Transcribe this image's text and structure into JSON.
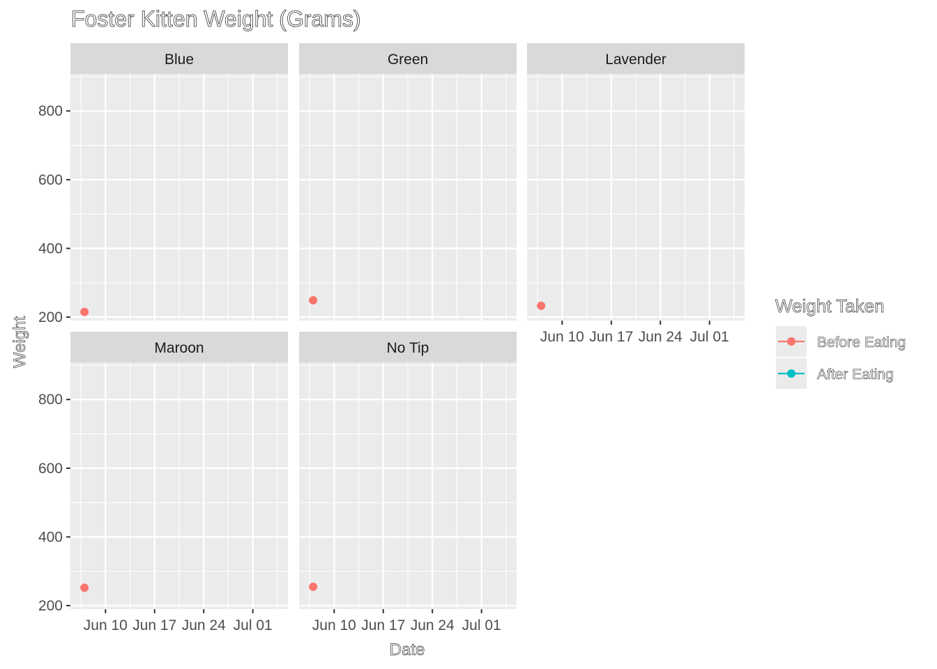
{
  "chart_data": {
    "type": "scatter",
    "title": "Foster Kitten Weight (Grams)",
    "xlabel": "Date",
    "ylabel": "Weight",
    "x_type": "date",
    "xlim": [
      "2023-06-05",
      "2023-07-06"
    ],
    "ylim": [
      190,
      908
    ],
    "x_ticks": [
      "2023-06-10",
      "2023-06-17",
      "2023-06-24",
      "2023-07-01"
    ],
    "x_tick_labels": [
      "Jun 10",
      "Jun 17",
      "Jun 24",
      "Jul 01"
    ],
    "y_ticks": [
      200,
      400,
      600,
      800
    ],
    "y_tick_labels": [
      "200",
      "400",
      "600",
      "800"
    ],
    "grid": true,
    "legend": {
      "title": "Weight Taken",
      "position": "right",
      "entries": [
        {
          "name": "Before Eating",
          "color": "#F8766D"
        },
        {
          "name": "After Eating",
          "color": "#00BFC4"
        }
      ]
    },
    "panels": [
      {
        "name": "Blue",
        "points": [
          {
            "series": "Before Eating",
            "x": "2023-06-07",
            "y": 215
          }
        ]
      },
      {
        "name": "Green",
        "points": [
          {
            "series": "Before Eating",
            "x": "2023-06-07",
            "y": 249
          }
        ]
      },
      {
        "name": "Lavender",
        "points": [
          {
            "series": "Before Eating",
            "x": "2023-06-07",
            "y": 233
          }
        ]
      },
      {
        "name": "Maroon",
        "points": [
          {
            "series": "Before Eating",
            "x": "2023-06-07",
            "y": 252
          }
        ]
      },
      {
        "name": "No Tip",
        "points": [
          {
            "series": "Before Eating",
            "x": "2023-06-07",
            "y": 255
          }
        ]
      }
    ]
  },
  "colors": {
    "panel_background": "#EBEBEB",
    "strip_background": "#D9D9D9",
    "grid_major": "#FFFFFF",
    "tick_color": "#333333",
    "text_color": "#4D4D4D"
  }
}
